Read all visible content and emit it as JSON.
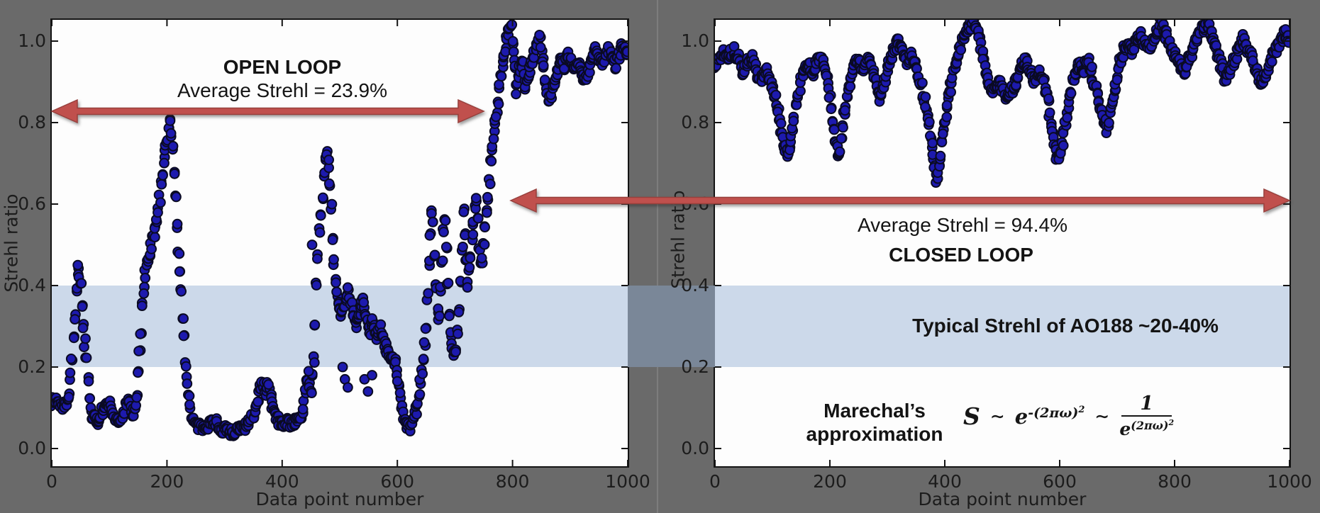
{
  "colors": {
    "background": "#6a6a6a",
    "plot_bg": "#fdfdfd",
    "axis": "#141414",
    "band_over_white": "#ccd9ea",
    "band_over_gap": "#7a8798",
    "arrow": "#c0504d",
    "arrow_edge": "#97403d",
    "point_fill": "#1d1aae",
    "point_edge": "#0a0a22"
  },
  "band": {
    "label": "Typical Strehl of AO188 ~20-40%",
    "y_from": 0.2,
    "y_to": 0.4
  },
  "open_loop": {
    "title": "OPEN LOOP",
    "subtitle": "Average Strehl = 23.9%"
  },
  "closed_loop": {
    "subtitle": "Average Strehl = 94.4%",
    "title": "CLOSED LOOP"
  },
  "marechal": {
    "name_line1": "Marechal’s",
    "name_line2": "approximation",
    "s": "S",
    "tilde": "∼",
    "e": "e",
    "neg_exp": "-(2πω)",
    "pos_exp": "(2πω)",
    "sq": "2",
    "num": "1"
  },
  "chart_data": [
    {
      "type": "scatter",
      "name": "open_loop",
      "annotation": "OPEN LOOP, Average Strehl = 23.9%",
      "average_strehl_pct": 23.9,
      "xlabel": "Data point number",
      "ylabel": "Strehl ratio",
      "xlim": [
        0,
        1000
      ],
      "ylim": [
        -0.05,
        1.05
      ],
      "xticks": [
        0,
        200,
        400,
        600,
        800,
        1000
      ],
      "yticks": [
        0.0,
        0.2,
        0.4,
        0.6,
        0.8,
        1.0
      ],
      "grid": false,
      "legend": false,
      "shaded_band_y": [
        0.2,
        0.4
      ],
      "keypoints": [
        [
          0,
          0.115
        ],
        [
          10,
          0.12
        ],
        [
          20,
          0.1
        ],
        [
          30,
          0.13
        ],
        [
          38,
          0.28
        ],
        [
          45,
          0.44
        ],
        [
          50,
          0.4
        ],
        [
          55,
          0.3
        ],
        [
          60,
          0.22
        ],
        [
          65,
          0.12
        ],
        [
          70,
          0.08
        ],
        [
          80,
          0.065
        ],
        [
          90,
          0.1
        ],
        [
          100,
          0.11
        ],
        [
          108,
          0.075
        ],
        [
          118,
          0.06
        ],
        [
          126,
          0.1
        ],
        [
          134,
          0.12
        ],
        [
          140,
          0.08
        ],
        [
          146,
          0.1
        ],
        [
          152,
          0.22
        ],
        [
          158,
          0.36
        ],
        [
          164,
          0.45
        ],
        [
          170,
          0.48
        ],
        [
          176,
          0.52
        ],
        [
          182,
          0.55
        ],
        [
          188,
          0.62
        ],
        [
          194,
          0.7
        ],
        [
          200,
          0.76
        ],
        [
          205,
          0.8
        ],
        [
          210,
          0.74
        ],
        [
          215,
          0.62
        ],
        [
          220,
          0.48
        ],
        [
          226,
          0.36
        ],
        [
          232,
          0.22
        ],
        [
          238,
          0.12
        ],
        [
          244,
          0.07
        ],
        [
          252,
          0.055
        ],
        [
          262,
          0.05
        ],
        [
          272,
          0.06
        ],
        [
          282,
          0.07
        ],
        [
          292,
          0.05
        ],
        [
          302,
          0.045
        ],
        [
          312,
          0.04
        ],
        [
          322,
          0.045
        ],
        [
          332,
          0.05
        ],
        [
          342,
          0.06
        ],
        [
          352,
          0.09
        ],
        [
          360,
          0.14
        ],
        [
          366,
          0.17
        ],
        [
          371,
          0.13
        ],
        [
          376,
          0.16
        ],
        [
          382,
          0.11
        ],
        [
          390,
          0.075
        ],
        [
          398,
          0.06
        ],
        [
          408,
          0.065
        ],
        [
          418,
          0.06
        ],
        [
          428,
          0.07
        ],
        [
          436,
          0.09
        ],
        [
          442,
          0.16
        ],
        [
          446,
          0.18
        ],
        [
          450,
          0.13
        ],
        [
          455,
          0.22
        ],
        [
          460,
          0.4
        ],
        [
          464,
          0.52
        ],
        [
          468,
          0.58
        ],
        [
          472,
          0.66
        ],
        [
          476,
          0.73
        ],
        [
          480,
          0.7
        ],
        [
          484,
          0.62
        ],
        [
          488,
          0.5
        ],
        [
          492,
          0.42
        ],
        [
          497,
          0.36
        ],
        [
          503,
          0.33
        ],
        [
          510,
          0.37
        ],
        [
          516,
          0.39
        ],
        [
          522,
          0.34
        ],
        [
          528,
          0.3
        ],
        [
          534,
          0.33
        ],
        [
          540,
          0.37
        ],
        [
          546,
          0.32
        ],
        [
          552,
          0.28
        ],
        [
          558,
          0.32
        ],
        [
          564,
          0.27
        ],
        [
          570,
          0.3
        ],
        [
          576,
          0.26
        ],
        [
          582,
          0.24
        ],
        [
          590,
          0.22
        ],
        [
          598,
          0.21
        ],
        [
          604,
          0.14
        ],
        [
          610,
          0.08
        ],
        [
          616,
          0.055
        ],
        [
          622,
          0.05
        ],
        [
          628,
          0.07
        ],
        [
          634,
          0.1
        ],
        [
          640,
          0.16
        ],
        [
          646,
          0.24
        ],
        [
          650,
          0.3
        ],
        [
          654,
          0.42
        ],
        [
          658,
          0.55
        ],
        [
          661,
          0.6
        ],
        [
          664,
          0.5
        ],
        [
          668,
          0.38
        ],
        [
          672,
          0.3
        ],
        [
          676,
          0.42
        ],
        [
          680,
          0.53
        ],
        [
          683,
          0.57
        ],
        [
          686,
          0.45
        ],
        [
          690,
          0.32
        ],
        [
          694,
          0.26
        ],
        [
          698,
          0.23
        ],
        [
          703,
          0.25
        ],
        [
          708,
          0.35
        ],
        [
          712,
          0.48
        ],
        [
          715,
          0.58
        ],
        [
          718,
          0.52
        ],
        [
          722,
          0.4
        ],
        [
          726,
          0.45
        ],
        [
          730,
          0.52
        ],
        [
          734,
          0.58
        ],
        [
          738,
          0.62
        ],
        [
          742,
          0.5
        ],
        [
          746,
          0.44
        ],
        [
          750,
          0.5
        ],
        [
          755,
          0.58
        ],
        [
          760,
          0.66
        ],
        [
          765,
          0.74
        ],
        [
          770,
          0.8
        ],
        [
          775,
          0.85
        ],
        [
          780,
          0.92
        ],
        [
          786,
          0.97
        ],
        [
          792,
          1.02
        ],
        [
          797,
          1.04
        ],
        [
          802,
          0.97
        ],
        [
          807,
          0.9
        ],
        [
          812,
          0.93
        ],
        [
          817,
          0.95
        ],
        [
          822,
          0.89
        ],
        [
          827,
          0.91
        ],
        [
          832,
          0.94
        ],
        [
          838,
          0.97
        ],
        [
          844,
          1.0
        ],
        [
          848,
          1.01
        ],
        [
          853,
          0.95
        ],
        [
          858,
          0.9
        ],
        [
          863,
          0.85
        ],
        [
          868,
          0.87
        ],
        [
          873,
          0.9
        ],
        [
          878,
          0.93
        ],
        [
          884,
          0.96
        ],
        [
          890,
          0.94
        ],
        [
          896,
          0.97
        ],
        [
          902,
          0.95
        ],
        [
          908,
          0.93
        ],
        [
          914,
          0.95
        ],
        [
          920,
          0.92
        ],
        [
          926,
          0.9
        ],
        [
          932,
          0.93
        ],
        [
          938,
          0.96
        ],
        [
          944,
          0.98
        ],
        [
          950,
          0.96
        ],
        [
          956,
          0.94
        ],
        [
          962,
          0.96
        ],
        [
          968,
          0.98
        ],
        [
          974,
          0.96
        ],
        [
          980,
          0.94
        ],
        [
          986,
          0.97
        ],
        [
          992,
          0.99
        ],
        [
          1000,
          0.97
        ]
      ],
      "outliers": [
        [
          446,
          0.19
        ],
        [
          452,
          0.5
        ],
        [
          505,
          0.2
        ],
        [
          509,
          0.17
        ],
        [
          514,
          0.15
        ],
        [
          543,
          0.17
        ],
        [
          549,
          0.14
        ],
        [
          556,
          0.18
        ],
        [
          600,
          0.165
        ],
        [
          806,
          0.87
        ]
      ]
    },
    {
      "type": "scatter",
      "name": "closed_loop",
      "annotation": "CLOSED LOOP, Average Strehl = 94.4%",
      "average_strehl_pct": 94.4,
      "xlabel": "Data point number",
      "ylabel": "Strehl ratio",
      "xlim": [
        0,
        1000
      ],
      "ylim": [
        -0.05,
        1.05
      ],
      "xticks": [
        0,
        200,
        400,
        600,
        800,
        1000
      ],
      "yticks": [
        0.0,
        0.2,
        0.4,
        0.6,
        0.8,
        1.0
      ],
      "grid": false,
      "legend": false,
      "shaded_band_y": [
        0.2,
        0.4
      ],
      "keypoints": [
        [
          0,
          0.945
        ],
        [
          8,
          0.96
        ],
        [
          16,
          0.975
        ],
        [
          24,
          0.965
        ],
        [
          32,
          0.975
        ],
        [
          40,
          0.96
        ],
        [
          48,
          0.92
        ],
        [
          56,
          0.945
        ],
        [
          64,
          0.96
        ],
        [
          72,
          0.925
        ],
        [
          80,
          0.905
        ],
        [
          88,
          0.93
        ],
        [
          96,
          0.9
        ],
        [
          104,
          0.865
        ],
        [
          112,
          0.81
        ],
        [
          120,
          0.745
        ],
        [
          126,
          0.715
        ],
        [
          132,
          0.76
        ],
        [
          138,
          0.82
        ],
        [
          146,
          0.88
        ],
        [
          154,
          0.92
        ],
        [
          162,
          0.945
        ],
        [
          170,
          0.92
        ],
        [
          178,
          0.95
        ],
        [
          186,
          0.965
        ],
        [
          192,
          0.93
        ],
        [
          198,
          0.88
        ],
        [
          204,
          0.82
        ],
        [
          210,
          0.755
        ],
        [
          215,
          0.715
        ],
        [
          220,
          0.76
        ],
        [
          226,
          0.83
        ],
        [
          232,
          0.88
        ],
        [
          240,
          0.93
        ],
        [
          248,
          0.955
        ],
        [
          256,
          0.93
        ],
        [
          264,
          0.965
        ],
        [
          272,
          0.94
        ],
        [
          280,
          0.9
        ],
        [
          287,
          0.855
        ],
        [
          294,
          0.89
        ],
        [
          302,
          0.94
        ],
        [
          310,
          0.975
        ],
        [
          318,
          1.0
        ],
        [
          326,
          0.975
        ],
        [
          334,
          0.945
        ],
        [
          342,
          0.97
        ],
        [
          350,
          0.935
        ],
        [
          358,
          0.9
        ],
        [
          366,
          0.85
        ],
        [
          374,
          0.78
        ],
        [
          381,
          0.7
        ],
        [
          386,
          0.655
        ],
        [
          391,
          0.7
        ],
        [
          397,
          0.77
        ],
        [
          404,
          0.84
        ],
        [
          412,
          0.9
        ],
        [
          420,
          0.95
        ],
        [
          428,
          0.99
        ],
        [
          436,
          1.02
        ],
        [
          444,
          1.04
        ],
        [
          452,
          1.05
        ],
        [
          460,
          1.01
        ],
        [
          468,
          0.945
        ],
        [
          476,
          0.895
        ],
        [
          484,
          0.87
        ],
        [
          492,
          0.9
        ],
        [
          500,
          0.88
        ],
        [
          508,
          0.855
        ],
        [
          516,
          0.875
        ],
        [
          524,
          0.9
        ],
        [
          532,
          0.935
        ],
        [
          540,
          0.955
        ],
        [
          548,
          0.925
        ],
        [
          556,
          0.9
        ],
        [
          564,
          0.925
        ],
        [
          572,
          0.9
        ],
        [
          579,
          0.855
        ],
        [
          586,
          0.79
        ],
        [
          592,
          0.735
        ],
        [
          598,
          0.705
        ],
        [
          604,
          0.745
        ],
        [
          610,
          0.8
        ],
        [
          617,
          0.86
        ],
        [
          624,
          0.91
        ],
        [
          632,
          0.945
        ],
        [
          640,
          0.925
        ],
        [
          648,
          0.955
        ],
        [
          655,
          0.925
        ],
        [
          662,
          0.885
        ],
        [
          669,
          0.845
        ],
        [
          676,
          0.81
        ],
        [
          683,
          0.785
        ],
        [
          690,
          0.835
        ],
        [
          697,
          0.89
        ],
        [
          704,
          0.94
        ],
        [
          711,
          0.975
        ],
        [
          718,
          1.0
        ],
        [
          725,
          0.975
        ],
        [
          732,
          0.995
        ],
        [
          739,
          1.02
        ],
        [
          746,
          1.0
        ],
        [
          753,
          0.975
        ],
        [
          760,
          0.995
        ],
        [
          768,
          1.02
        ],
        [
          776,
          1.045
        ],
        [
          784,
          1.02
        ],
        [
          792,
          0.99
        ],
        [
          800,
          0.965
        ],
        [
          808,
          0.945
        ],
        [
          816,
          0.925
        ],
        [
          824,
          0.95
        ],
        [
          832,
          0.98
        ],
        [
          840,
          1.005
        ],
        [
          848,
          1.03
        ],
        [
          856,
          1.045
        ],
        [
          864,
          1.02
        ],
        [
          872,
          0.985
        ],
        [
          880,
          0.945
        ],
        [
          888,
          0.91
        ],
        [
          896,
          0.925
        ],
        [
          904,
          0.955
        ],
        [
          912,
          0.985
        ],
        [
          920,
          1.005
        ],
        [
          928,
          0.98
        ],
        [
          936,
          0.955
        ],
        [
          944,
          0.92
        ],
        [
          952,
          0.9
        ],
        [
          960,
          0.925
        ],
        [
          968,
          0.955
        ],
        [
          976,
          0.98
        ],
        [
          984,
          1.0
        ],
        [
          992,
          1.02
        ],
        [
          1000,
          1.005
        ]
      ],
      "outliers": []
    }
  ]
}
